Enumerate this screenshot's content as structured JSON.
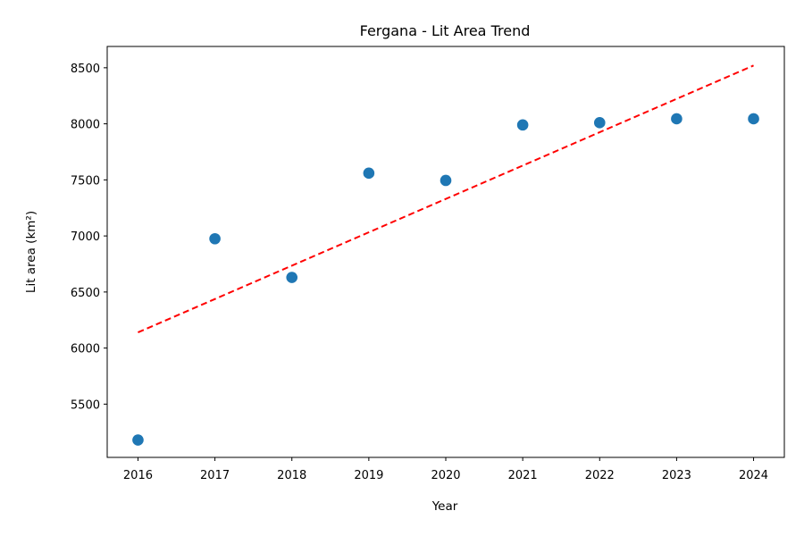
{
  "chart_data": {
    "type": "scatter",
    "title": "Fergana - Lit Area Trend",
    "xlabel": "Year",
    "ylabel": "Lit area (km²)",
    "x": [
      2016,
      2017,
      2018,
      2019,
      2020,
      2021,
      2022,
      2023,
      2024
    ],
    "xticks": [
      "2016",
      "2017",
      "2018",
      "2019",
      "2020",
      "2021",
      "2022",
      "2023",
      "2024"
    ],
    "yticks": [
      "5500",
      "6000",
      "6500",
      "7000",
      "7500",
      "8000",
      "8500"
    ],
    "xlim": [
      2015.6,
      2024.4
    ],
    "ylim": [
      5025,
      8690
    ],
    "grid": false,
    "series": [
      {
        "kind": "scatter",
        "color": "#1f77b4",
        "values": [
          5180,
          6975,
          6630,
          7560,
          7495,
          7990,
          8010,
          8045,
          8045
        ]
      },
      {
        "kind": "trend-line",
        "style": "dashed",
        "color": "#ff0000",
        "x": [
          2016,
          2024
        ],
        "values": [
          6140,
          8520
        ]
      }
    ]
  }
}
